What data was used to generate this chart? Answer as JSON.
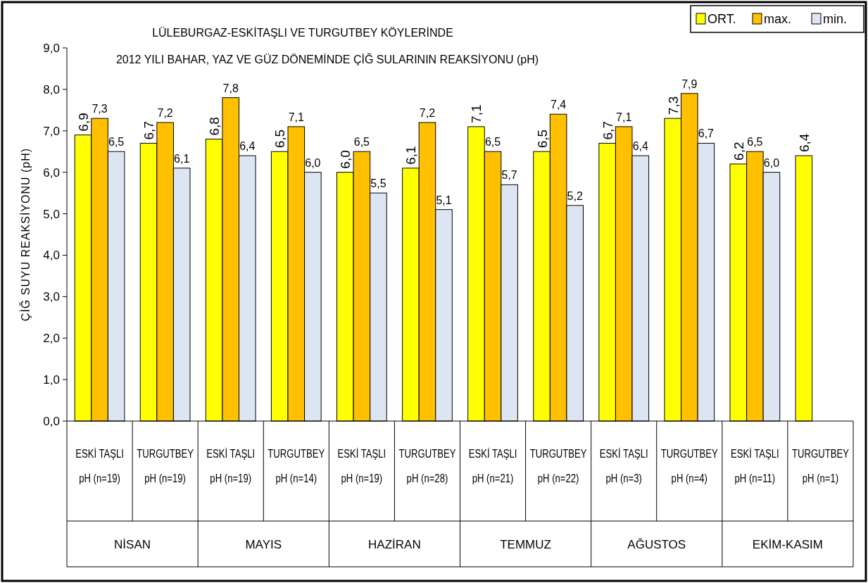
{
  "chart_data": {
    "type": "bar",
    "title": "LÜLEBURGAZ-ESKİTAŞLI VE TURGUTBEY KÖYLERİNDE",
    "subtitle": "2012 YILI BAHAR, YAZ VE GÜZ DÖNEMİNDE ÇİĞ SULARININ REAKSİYONU (pH)",
    "ylabel": "ÇİĞ SUYU REAKSİYONU  (pH)",
    "categories": [
      "ESKİ TAŞLI\npH (n=19)",
      "TURGUTBEY\npH (n=19)",
      "ESKİ TAŞLI\npH (n=19)",
      "TURGUTBEY\npH (n=14)",
      "ESKİ TAŞLI\npH (n=19)",
      "TURGUTBEY\npH (n=28)",
      "ESKİ TAŞLI\npH (n=21)",
      "TURGUTBEY\npH (n=22)",
      "ESKİ TAŞLI\npH (n=3)",
      "TURGUTBEY\npH (n=4)",
      "ESKİ TAŞLI\npH (n=11)",
      "TURGUTBEY\npH (n=1)"
    ],
    "annotations": [
      "NİSAN",
      "MAYIS",
      "HAZİRAN",
      "TEMMUZ",
      "AĞUSTOS",
      "EKİM-KASIM"
    ],
    "series": [
      {
        "name": "ORT.",
        "color": "#ffff00",
        "values": [
          6.9,
          6.7,
          6.8,
          6.5,
          6.0,
          6.1,
          7.1,
          6.5,
          6.7,
          7.3,
          6.2,
          6.4
        ],
        "value_labels": [
          "6,9",
          "6,7",
          "6,8",
          "6,5",
          "6,0",
          "6,1",
          "7,1",
          "6,5",
          "6,7",
          "7,3",
          "6,2",
          "6,4"
        ]
      },
      {
        "name": "max.",
        "color": "#ffc000",
        "values": [
          7.3,
          7.2,
          7.8,
          7.1,
          6.5,
          7.2,
          6.5,
          7.4,
          7.1,
          7.9,
          6.5,
          null
        ],
        "value_labels": [
          "7,3",
          "7,2",
          "7,8",
          "7,1",
          "6,5",
          "7,2",
          "6,5",
          "7,4",
          "7,1",
          "7,9",
          "6,5",
          null
        ]
      },
      {
        "name": "min.",
        "color": "#dce6f2",
        "values": [
          6.5,
          6.1,
          6.4,
          6.0,
          5.5,
          5.1,
          5.7,
          5.2,
          6.4,
          6.7,
          6.0,
          null
        ],
        "value_labels": [
          "6,5",
          "6,1",
          "6,4",
          "6,0",
          "5,5",
          "5,1",
          "5,7",
          "5,2",
          "6,4",
          "6,7",
          "6,0",
          null
        ]
      }
    ],
    "ylim": [
      0,
      9
    ],
    "yticks": [
      {
        "value": 0,
        "label": "0,0"
      },
      {
        "value": 1,
        "label": "1,0"
      },
      {
        "value": 2,
        "label": "2,0"
      },
      {
        "value": 3,
        "label": "3,0"
      },
      {
        "value": 4,
        "label": "4,0"
      },
      {
        "value": 5,
        "label": "5,0"
      },
      {
        "value": 6,
        "label": "6,0"
      },
      {
        "value": 7,
        "label": "7,0"
      },
      {
        "value": 8,
        "label": "8,0"
      },
      {
        "value": 9,
        "label": "9,0"
      }
    ],
    "legend": "top right"
  }
}
